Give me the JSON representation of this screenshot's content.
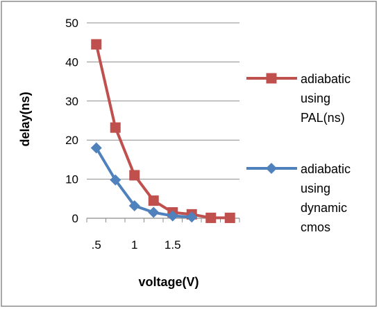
{
  "chart_data": {
    "type": "line",
    "xlabel": "voltage(V)",
    "ylabel": "delay(ns)",
    "ylim": [
      0,
      50
    ],
    "yticks": [
      "0",
      "10",
      "20",
      "30",
      "40",
      "50"
    ],
    "categories": [
      "0.5",
      "0.75",
      "1.0",
      "1.25",
      "1.5",
      "1.75",
      "2.0",
      "2.25"
    ],
    "xtick_labels": [
      ".5",
      "1",
      "1.5"
    ],
    "grid": "horizontal",
    "legend_position": "right",
    "series": [
      {
        "name": "adiabatic using PAL(ns)",
        "legend_lines": [
          "adiabatic",
          "using",
          "PAL(ns)"
        ],
        "color": "#c0504d",
        "marker": "square",
        "values": [
          44.5,
          23.2,
          11.0,
          4.5,
          1.5,
          1.0,
          0.1,
          0.1
        ]
      },
      {
        "name": "adiabatic using dynamic cmos",
        "legend_lines": [
          "adiabatic",
          "using",
          "dynamic",
          "cmos"
        ],
        "color": "#4f81bd",
        "marker": "diamond",
        "values": [
          18.0,
          9.8,
          3.2,
          1.5,
          0.6,
          0.3,
          null,
          null
        ]
      }
    ]
  }
}
